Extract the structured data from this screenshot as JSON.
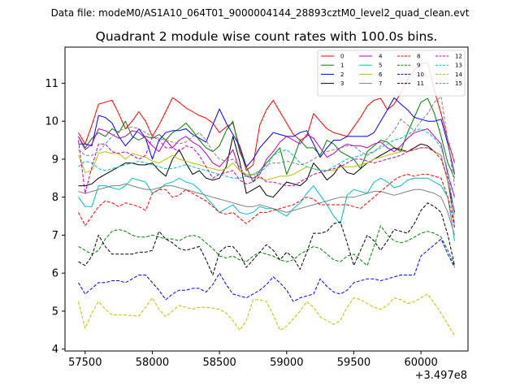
{
  "chart_data": {
    "type": "line",
    "suptitle": "Data file: modeM0/AS1A10_064T01_9000004144_28893cztM0_level2_quad_clean.evt",
    "title": "Quadrant 2 module wise count rates with 100.0s bins.",
    "xlabel": "",
    "ylabel": "",
    "x_offset_label": "+3.497e8",
    "xlim": [
      57350,
      60350
    ],
    "ylim": [
      3.95,
      11.95
    ],
    "x_ticks": [
      57500,
      58000,
      58500,
      59000,
      59500,
      60000
    ],
    "x_tick_labels": [
      "57500",
      "58000",
      "58500",
      "59000",
      "59500",
      "60000"
    ],
    "y_ticks": [
      4,
      5,
      6,
      7,
      8,
      9,
      10,
      11
    ],
    "y_tick_labels": [
      "4",
      "5",
      "6",
      "7",
      "8",
      "9",
      "10",
      "11"
    ],
    "x": [
      57450,
      57500,
      57550,
      57600,
      57650,
      57700,
      57750,
      57800,
      57850,
      57900,
      57950,
      58000,
      58050,
      58100,
      58150,
      58200,
      58250,
      58300,
      58350,
      58400,
      58450,
      58500,
      58550,
      58600,
      58650,
      58700,
      58750,
      58800,
      58850,
      58900,
      58950,
      59000,
      59050,
      59100,
      59150,
      59200,
      59250,
      59300,
      59350,
      59400,
      59450,
      59500,
      59550,
      59600,
      59650,
      59700,
      59750,
      59800,
      59850,
      59900,
      59950,
      60000,
      60050,
      60100,
      60150,
      60200,
      60250
    ],
    "legend_location": "top-right",
    "series": [
      {
        "name": "0",
        "color": "#ff0000",
        "dash": false,
        "values": [
          9.7,
          9.4,
          9.9,
          10.45,
          10.5,
          10.55,
          10.2,
          9.8,
          10.0,
          10.25,
          10.0,
          9.6,
          9.9,
          10.25,
          10.62,
          10.5,
          10.35,
          10.25,
          10.15,
          10.08,
          9.95,
          9.7,
          9.85,
          9.95,
          9.3,
          8.7,
          8.85,
          9.9,
          10.3,
          10.55,
          10.25,
          9.95,
          9.65,
          9.5,
          9.6,
          10.2,
          10.0,
          9.8,
          9.7,
          9.65,
          9.6,
          9.85,
          10.1,
          10.4,
          10.55,
          10.6,
          10.3,
          10.45,
          10.75,
          11.1,
          11.35,
          11.5,
          11.55,
          10.8,
          10.2,
          9.5,
          8.9
        ]
      },
      {
        "name": "1",
        "color": "#008000",
        "dash": false,
        "values": [
          9.6,
          9.3,
          9.55,
          9.7,
          9.6,
          9.8,
          9.7,
          10.0,
          9.6,
          9.5,
          9.6,
          9.55,
          9.65,
          9.5,
          9.7,
          9.8,
          9.95,
          9.75,
          9.5,
          9.3,
          9.2,
          9.35,
          9.75,
          10.0,
          9.2,
          8.8,
          8.4,
          8.7,
          8.9,
          9.1,
          9.3,
          8.6,
          9.0,
          9.5,
          9.3,
          9.3,
          9.1,
          9.5,
          9.4,
          9.2,
          9.1,
          9.0,
          8.75,
          9.2,
          9.35,
          9.5,
          9.45,
          9.3,
          9.2,
          9.7,
          10.1,
          10.5,
          10.6,
          10.2,
          9.6,
          8.9,
          8.5
        ]
      },
      {
        "name": "2",
        "color": "#0000ff",
        "dash": false,
        "values": [
          9.4,
          9.4,
          9.35,
          10.15,
          10.1,
          9.95,
          9.6,
          9.35,
          9.55,
          9.8,
          9.55,
          9.0,
          9.5,
          9.7,
          9.75,
          9.75,
          9.8,
          9.65,
          9.55,
          9.45,
          9.9,
          10.32,
          9.95,
          9.65,
          9.35,
          8.8,
          9.0,
          9.3,
          9.5,
          9.7,
          9.65,
          9.6,
          9.6,
          9.7,
          9.75,
          9.4,
          9.05,
          9.3,
          9.5,
          9.5,
          9.6,
          9.6,
          9.6,
          9.6,
          9.7,
          10.0,
          10.3,
          10.62,
          10.45,
          10.3,
          10.1,
          10.05,
          10.0,
          10.0,
          10.05,
          9.4,
          8.6
        ]
      },
      {
        "name": "3",
        "color": "#000000",
        "dash": false,
        "values": [
          8.3,
          8.3,
          8.35,
          8.5,
          8.6,
          8.7,
          8.8,
          8.9,
          8.9,
          8.85,
          8.85,
          8.9,
          8.7,
          8.55,
          9.0,
          9.25,
          8.9,
          8.6,
          8.7,
          8.5,
          8.45,
          8.5,
          8.8,
          9.6,
          8.95,
          8.1,
          8.2,
          8.3,
          8.05,
          8.0,
          8.2,
          8.4,
          8.35,
          8.3,
          8.45,
          8.9,
          8.7,
          8.45,
          8.6,
          8.85,
          8.65,
          8.6,
          8.75,
          8.9,
          9.0,
          9.1,
          9.2,
          9.3,
          9.25,
          9.2,
          9.3,
          9.4,
          9.35,
          9.2,
          9.1,
          8.4,
          7.6
        ]
      },
      {
        "name": "4",
        "color": "#bf00bf",
        "dash": false,
        "values": [
          9.6,
          9.25,
          9.4,
          9.8,
          9.75,
          9.65,
          9.55,
          9.6,
          9.75,
          9.7,
          9.55,
          9.35,
          9.2,
          9.5,
          9.3,
          9.5,
          9.6,
          9.45,
          9.35,
          9.15,
          8.9,
          8.8,
          9.0,
          9.25,
          8.7,
          8.55,
          8.5,
          8.6,
          9.0,
          9.2,
          9.45,
          9.6,
          9.5,
          9.4,
          9.65,
          9.55,
          9.3,
          9.05,
          9.15,
          9.3,
          9.4,
          9.35,
          9.35,
          9.3,
          9.4,
          9.45,
          9.3,
          9.2,
          9.35,
          9.55,
          9.7,
          9.75,
          9.8,
          9.6,
          9.4,
          8.6,
          8.0
        ]
      },
      {
        "name": "5",
        "color": "#00bfbf",
        "dash": false,
        "values": [
          8.0,
          7.75,
          7.75,
          8.3,
          8.3,
          8.25,
          8.2,
          8.3,
          8.5,
          8.45,
          8.4,
          8.1,
          8.2,
          8.35,
          8.4,
          8.5,
          8.4,
          8.35,
          8.2,
          8.0,
          7.8,
          7.6,
          7.7,
          7.8,
          7.6,
          7.55,
          7.6,
          7.75,
          7.7,
          7.7,
          7.6,
          7.5,
          7.7,
          7.85,
          8.1,
          8.3,
          8.05,
          7.8,
          7.5,
          7.3,
          8.05,
          8.2,
          8.15,
          8.1,
          8.4,
          8.5,
          8.4,
          8.25,
          8.3,
          8.45,
          8.5,
          8.5,
          8.5,
          8.4,
          8.3,
          8.0,
          6.85
        ]
      },
      {
        "name": "6",
        "color": "#bfbf00",
        "dash": false,
        "values": [
          9.1,
          8.65,
          8.7,
          9.15,
          9.2,
          9.15,
          9.15,
          9.0,
          9.15,
          9.1,
          9.05,
          8.95,
          8.9,
          9.0,
          9.1,
          9.0,
          8.95,
          8.9,
          8.85,
          8.8,
          8.75,
          8.7,
          8.75,
          8.9,
          8.7,
          8.6,
          8.6,
          8.5,
          8.45,
          8.5,
          8.55,
          8.55,
          8.6,
          8.7,
          8.8,
          8.75,
          8.7,
          8.7,
          8.7,
          8.8,
          8.8,
          8.8,
          8.85,
          8.9,
          9.0,
          9.05,
          9.1,
          9.15,
          9.2,
          9.2,
          9.25,
          9.3,
          9.3,
          9.2,
          9.1,
          8.4,
          7.3
        ]
      },
      {
        "name": "7",
        "color": "#808080",
        "dash": false,
        "values": [
          8.15,
          8.1,
          8.15,
          8.2,
          8.25,
          8.3,
          8.3,
          8.35,
          8.3,
          8.25,
          8.2,
          8.2,
          8.25,
          8.3,
          8.3,
          8.25,
          8.2,
          8.15,
          8.1,
          8.05,
          8.0,
          7.95,
          7.9,
          7.85,
          7.8,
          7.75,
          7.75,
          7.8,
          7.75,
          7.7,
          7.65,
          7.6,
          7.65,
          7.7,
          7.75,
          7.8,
          7.85,
          7.9,
          7.95,
          8.0,
          8.0,
          8.0,
          8.05,
          8.1,
          8.15,
          8.15,
          8.1,
          8.05,
          8.1,
          8.15,
          8.2,
          8.2,
          8.15,
          8.1,
          8.0,
          7.6,
          7.0
        ]
      },
      {
        "name": "8",
        "color": "#ff0000",
        "dash": true,
        "values": [
          7.6,
          7.25,
          7.5,
          7.75,
          7.9,
          7.85,
          7.75,
          7.85,
          7.8,
          7.75,
          7.65,
          8.1,
          8.2,
          8.2,
          8.0,
          8.05,
          8.2,
          8.1,
          8.0,
          7.9,
          7.75,
          7.6,
          7.55,
          7.6,
          7.45,
          7.3,
          7.45,
          7.6,
          7.6,
          7.65,
          7.7,
          7.75,
          7.8,
          7.9,
          8.0,
          7.95,
          7.8,
          7.8,
          7.8,
          7.8,
          7.8,
          7.75,
          7.7,
          7.85,
          8.0,
          8.15,
          8.3,
          8.45,
          8.55,
          8.6,
          8.55,
          8.6,
          8.6,
          8.55,
          8.5,
          8.0,
          7.2
        ]
      },
      {
        "name": "9",
        "color": "#008000",
        "dash": true,
        "values": [
          6.7,
          6.6,
          6.5,
          6.6,
          6.9,
          7.1,
          7.15,
          7.1,
          7.0,
          6.95,
          6.95,
          7.0,
          6.95,
          6.9,
          6.9,
          6.85,
          6.95,
          7.0,
          6.95,
          6.8,
          6.65,
          6.45,
          6.4,
          6.45,
          6.35,
          6.3,
          6.45,
          6.55,
          6.5,
          6.45,
          6.35,
          6.3,
          6.35,
          6.5,
          6.6,
          6.7,
          6.65,
          6.5,
          6.35,
          6.3,
          6.45,
          6.5,
          6.35,
          6.2,
          6.7,
          7.25,
          7.0,
          6.85,
          6.8,
          6.85,
          6.95,
          7.05,
          7.1,
          7.05,
          6.95,
          6.6,
          6.2
        ]
      },
      {
        "name": "10",
        "color": "#0000ff",
        "dash": true,
        "values": [
          5.75,
          5.45,
          5.6,
          5.75,
          5.75,
          5.8,
          5.8,
          5.75,
          5.85,
          5.95,
          5.95,
          5.75,
          5.55,
          5.3,
          5.45,
          5.55,
          5.55,
          5.6,
          5.6,
          5.5,
          5.7,
          6.0,
          5.7,
          5.45,
          5.4,
          5.35,
          5.45,
          5.55,
          5.7,
          5.9,
          5.75,
          5.55,
          5.25,
          5.35,
          5.4,
          5.45,
          5.85,
          5.65,
          5.5,
          5.45,
          5.55,
          5.75,
          5.8,
          5.85,
          5.85,
          5.8,
          5.85,
          5.9,
          5.95,
          5.95,
          5.95,
          6.45,
          6.6,
          6.75,
          6.9,
          6.5,
          6.15
        ]
      },
      {
        "name": "11",
        "color": "#000000",
        "dash": true,
        "values": [
          6.3,
          6.2,
          6.45,
          7.0,
          6.7,
          6.5,
          6.5,
          6.5,
          6.5,
          6.55,
          6.55,
          6.6,
          7.1,
          6.9,
          6.8,
          6.65,
          6.6,
          6.65,
          6.7,
          6.35,
          5.95,
          6.55,
          6.7,
          6.7,
          6.5,
          6.15,
          6.35,
          6.55,
          6.75,
          6.6,
          6.35,
          6.55,
          6.4,
          6.1,
          6.55,
          7.05,
          7.05,
          7.1,
          7.3,
          7.35,
          6.8,
          6.2,
          6.6,
          7.0,
          6.85,
          6.6,
          6.85,
          7.15,
          7.1,
          7.05,
          7.3,
          7.65,
          7.85,
          7.75,
          7.6,
          7.0,
          6.2
        ]
      },
      {
        "name": "12",
        "color": "#bf00bf",
        "dash": true,
        "values": [
          9.5,
          8.1,
          8.8,
          9.4,
          9.4,
          9.2,
          9.15,
          9.2,
          9.1,
          9.0,
          9.1,
          9.6,
          9.5,
          9.3,
          9.3,
          9.2,
          9.35,
          9.3,
          9.1,
          8.8,
          8.5,
          8.6,
          8.65,
          8.7,
          8.45,
          8.35,
          8.4,
          8.55,
          8.4,
          8.4,
          8.35,
          8.3,
          8.3,
          8.4,
          8.5,
          8.6,
          8.65,
          8.7,
          8.75,
          8.8,
          8.9,
          9.0,
          9.0,
          8.95,
          8.9,
          8.95,
          9.0,
          9.05,
          9.1,
          9.2,
          9.25,
          9.3,
          9.3,
          9.2,
          9.0,
          8.5,
          7.2
        ]
      },
      {
        "name": "13",
        "color": "#00bfbf",
        "dash": true,
        "values": [
          8.8,
          8.95,
          8.9,
          8.75,
          8.7,
          8.75,
          8.8,
          8.85,
          8.9,
          8.95,
          8.9,
          8.85,
          8.8,
          8.75,
          8.75,
          8.8,
          8.85,
          8.8,
          8.75,
          8.7,
          8.65,
          8.6,
          8.55,
          8.5,
          8.5,
          8.55,
          8.6,
          8.65,
          8.8,
          9.1,
          9.2,
          9.25,
          9.1,
          8.9,
          8.8,
          8.75,
          8.7,
          8.7,
          8.8,
          8.9,
          9.0,
          9.05,
          9.1,
          9.15,
          9.2,
          9.3,
          9.4,
          9.5,
          9.55,
          9.65,
          9.75,
          9.8,
          9.7,
          9.55,
          9.3,
          8.7,
          7.5
        ]
      },
      {
        "name": "14",
        "color": "#bfbf00",
        "dash": true,
        "values": [
          5.25,
          4.55,
          4.95,
          5.25,
          5.05,
          4.9,
          4.9,
          4.9,
          4.88,
          4.87,
          5.1,
          5.35,
          5.05,
          4.85,
          5.0,
          5.15,
          5.1,
          5.05,
          5.1,
          5.1,
          5.08,
          5.05,
          4.95,
          4.75,
          4.5,
          4.75,
          5.3,
          5.3,
          5.25,
          4.9,
          4.5,
          4.6,
          4.8,
          5.0,
          5.25,
          5.1,
          4.85,
          4.75,
          4.65,
          4.75,
          5.1,
          5.35,
          5.3,
          5.2,
          5.1,
          5.05,
          5.15,
          5.35,
          5.3,
          5.2,
          5.25,
          5.35,
          5.45,
          5.2,
          4.95,
          4.65,
          4.35
        ]
      },
      {
        "name": "15",
        "color": "#808080",
        "dash": true,
        "values": [
          9.25,
          9.1,
          9.1,
          9.2,
          9.4,
          9.6,
          9.75,
          9.8,
          9.85,
          9.8,
          9.7,
          9.6,
          9.55,
          9.5,
          9.45,
          9.4,
          9.45,
          9.6,
          9.7,
          9.5,
          9.2,
          9.0,
          8.95,
          9.0,
          8.8,
          8.55,
          8.6,
          8.7,
          8.85,
          8.9,
          8.9,
          8.95,
          8.9,
          8.85,
          8.9,
          9.0,
          9.1,
          9.2,
          9.25,
          9.3,
          9.35,
          9.35,
          9.2,
          9.1,
          9.2,
          9.35,
          9.55,
          9.75,
          10.05,
          9.9,
          9.75,
          10.0,
          10.2,
          10.5,
          10.65,
          9.5,
          8.3
        ]
      }
    ]
  }
}
